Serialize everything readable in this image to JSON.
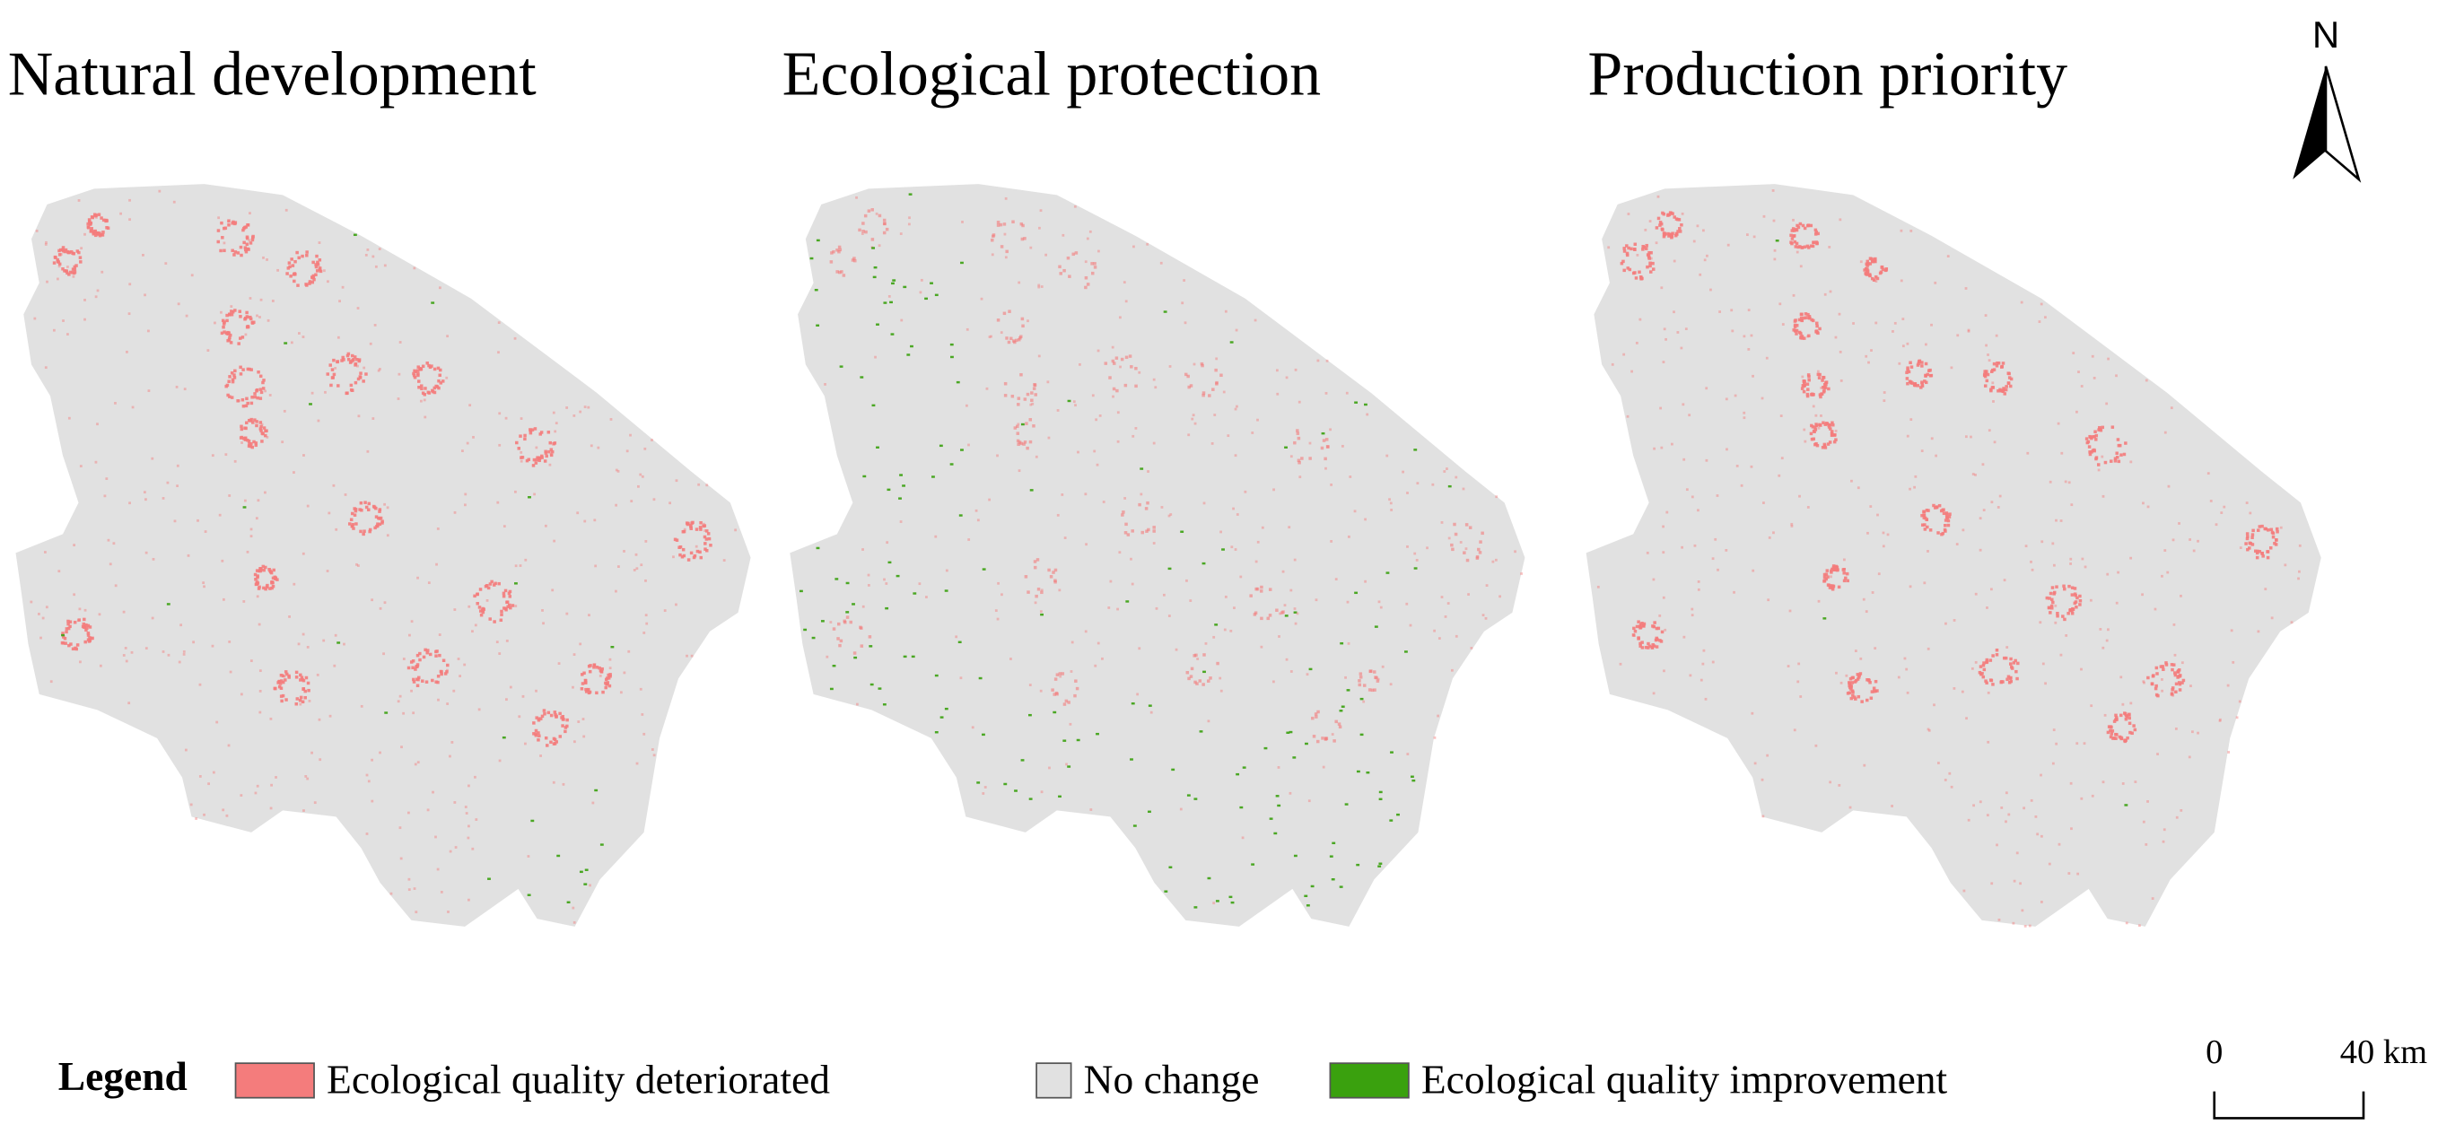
{
  "panels": [
    {
      "title": "Natural development"
    },
    {
      "title": "Ecological protection"
    },
    {
      "title": "Production priority"
    }
  ],
  "north_arrow": {
    "label": "N"
  },
  "legend": {
    "title": "Legend",
    "items": [
      {
        "label": "Ecological quality deteriorated",
        "color": "#f47c7c"
      },
      {
        "label": "No change",
        "color": "#e1e1e1"
      },
      {
        "label": "Ecological quality improvement",
        "color": "#3aa10e"
      }
    ]
  },
  "scale_bar": {
    "labels": [
      "0",
      "40 km"
    ]
  }
}
